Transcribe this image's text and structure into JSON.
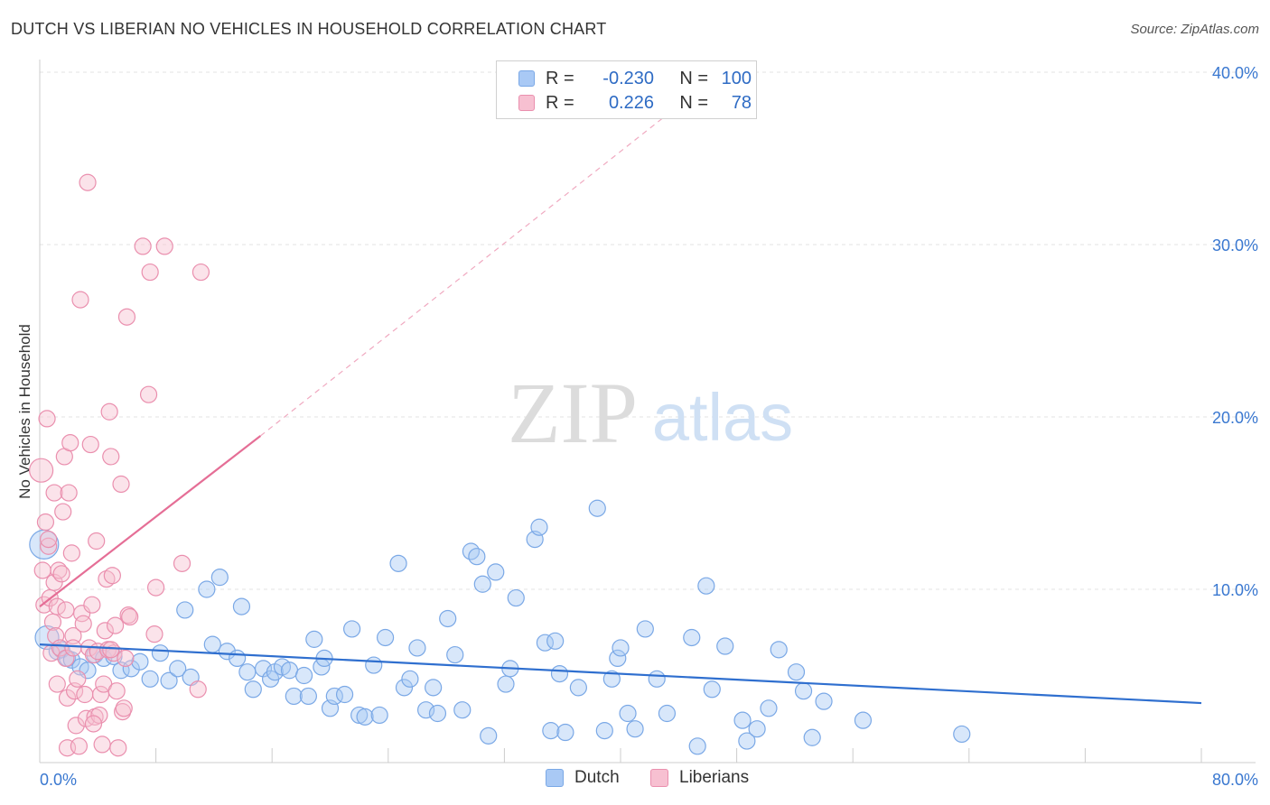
{
  "title": "DUTCH VS LIBERIAN NO VEHICLES IN HOUSEHOLD CORRELATION CHART",
  "source": "Source: ZipAtlas.com",
  "watermark": {
    "zip": "ZIP",
    "atlas": "atlas"
  },
  "legend": {
    "rows": [
      {
        "r_label": "R =",
        "r_value": "-0.230",
        "n_label": "N =",
        "n_value": "100",
        "color": "#a9c9f5",
        "border": "#7aa8e6"
      },
      {
        "r_label": "R =",
        "r_value": "0.226",
        "n_label": "N =",
        "n_value": "78",
        "color": "#f7c0d1",
        "border": "#ea8fae"
      }
    ]
  },
  "bottom_legend": [
    {
      "label": "Dutch",
      "color": "#a9c9f5",
      "border": "#7aa8e6"
    },
    {
      "label": "Liberians",
      "color": "#f7c0d1",
      "border": "#ea8fae"
    }
  ],
  "chart_data": {
    "type": "scatter",
    "title": "DUTCH VS LIBERIAN NO VEHICLES IN HOUSEHOLD CORRELATION CHART",
    "xlabel": "",
    "ylabel": "No Vehicles in Household",
    "xlim": [
      0,
      80
    ],
    "ylim": [
      0,
      42
    ],
    "x_tick_labels": [
      "0.0%",
      "80.0%"
    ],
    "y_tick_labels": [
      "10.0%",
      "20.0%",
      "30.0%",
      "40.0%"
    ],
    "y_ticks": [
      10,
      20,
      30,
      40
    ],
    "grid": true,
    "legend_position": "top-center",
    "series": [
      {
        "name": "Dutch",
        "color": "#7aa8e6",
        "fill": "#a9c9f5",
        "trend": {
          "x": [
            0,
            80
          ],
          "y": [
            6.8,
            3.4
          ],
          "color": "#2f6fcf"
        },
        "points": [
          [
            0.3,
            12.6
          ],
          [
            0.5,
            7.2
          ],
          [
            1.2,
            6.4
          ],
          [
            1.5,
            6.5
          ],
          [
            1.9,
            6.0
          ],
          [
            2.2,
            5.9
          ],
          [
            2.8,
            5.5
          ],
          [
            3.3,
            5.3
          ],
          [
            3.8,
            6.2
          ],
          [
            4.4,
            6.0
          ],
          [
            5.1,
            6.1
          ],
          [
            5.6,
            5.3
          ],
          [
            6.3,
            5.4
          ],
          [
            6.9,
            5.8
          ],
          [
            7.6,
            4.8
          ],
          [
            8.3,
            6.3
          ],
          [
            8.9,
            4.7
          ],
          [
            9.5,
            5.4
          ],
          [
            10.0,
            8.8
          ],
          [
            10.4,
            4.9
          ],
          [
            11.5,
            10.0
          ],
          [
            11.9,
            6.8
          ],
          [
            12.4,
            10.7
          ],
          [
            12.9,
            6.4
          ],
          [
            13.6,
            6.0
          ],
          [
            13.9,
            9.0
          ],
          [
            14.3,
            5.2
          ],
          [
            14.7,
            4.2
          ],
          [
            15.4,
            5.4
          ],
          [
            15.9,
            4.8
          ],
          [
            16.2,
            5.2
          ],
          [
            16.7,
            5.5
          ],
          [
            17.2,
            5.3
          ],
          [
            17.5,
            3.8
          ],
          [
            18.2,
            5.0
          ],
          [
            18.5,
            3.8
          ],
          [
            18.9,
            7.1
          ],
          [
            19.4,
            5.5
          ],
          [
            19.6,
            6.0
          ],
          [
            20.0,
            3.1
          ],
          [
            20.3,
            3.8
          ],
          [
            21.0,
            3.9
          ],
          [
            21.5,
            7.7
          ],
          [
            22.0,
            2.7
          ],
          [
            22.4,
            2.6
          ],
          [
            23.0,
            5.6
          ],
          [
            23.4,
            2.7
          ],
          [
            23.8,
            7.2
          ],
          [
            24.7,
            11.5
          ],
          [
            25.1,
            4.3
          ],
          [
            25.5,
            4.8
          ],
          [
            26.0,
            6.6
          ],
          [
            26.6,
            3.0
          ],
          [
            27.1,
            4.3
          ],
          [
            27.4,
            2.8
          ],
          [
            28.1,
            8.3
          ],
          [
            28.6,
            6.2
          ],
          [
            29.1,
            3.0
          ],
          [
            29.7,
            12.2
          ],
          [
            30.1,
            11.9
          ],
          [
            30.5,
            10.3
          ],
          [
            30.9,
            1.5
          ],
          [
            31.4,
            11.0
          ],
          [
            32.1,
            4.5
          ],
          [
            32.4,
            5.4
          ],
          [
            32.8,
            9.5
          ],
          [
            34.1,
            12.9
          ],
          [
            34.4,
            13.6
          ],
          [
            34.8,
            6.9
          ],
          [
            35.2,
            1.8
          ],
          [
            35.5,
            7.0
          ],
          [
            35.8,
            5.1
          ],
          [
            36.2,
            1.7
          ],
          [
            37.1,
            4.3
          ],
          [
            38.4,
            14.7
          ],
          [
            38.9,
            1.8
          ],
          [
            39.4,
            4.8
          ],
          [
            39.8,
            6.0
          ],
          [
            40.0,
            6.6
          ],
          [
            40.5,
            2.8
          ],
          [
            41.0,
            1.9
          ],
          [
            41.7,
            7.7
          ],
          [
            42.5,
            4.8
          ],
          [
            43.2,
            2.8
          ],
          [
            44.9,
            7.2
          ],
          [
            45.3,
            0.9
          ],
          [
            45.9,
            10.2
          ],
          [
            46.3,
            4.2
          ],
          [
            47.2,
            6.7
          ],
          [
            48.4,
            2.4
          ],
          [
            48.7,
            1.2
          ],
          [
            49.4,
            1.9
          ],
          [
            50.2,
            3.1
          ],
          [
            50.9,
            6.5
          ],
          [
            52.1,
            5.2
          ],
          [
            52.6,
            4.1
          ],
          [
            53.2,
            1.4
          ],
          [
            54.0,
            3.5
          ],
          [
            56.7,
            2.4
          ],
          [
            63.5,
            1.6
          ]
        ]
      },
      {
        "name": "Liberians",
        "color": "#ea8fae",
        "fill": "#f7c0d1",
        "trend": {
          "x": [
            0,
            15.2
          ],
          "y": [
            9.0,
            18.9
          ],
          "color": "#e56e96",
          "dashed_extension_to": [
            43,
            37.4
          ]
        },
        "points": [
          [
            0.1,
            16.9
          ],
          [
            0.2,
            11.1
          ],
          [
            0.3,
            9.1
          ],
          [
            0.4,
            13.9
          ],
          [
            0.5,
            19.9
          ],
          [
            0.6,
            12.5
          ],
          [
            0.7,
            9.5
          ],
          [
            0.8,
            6.3
          ],
          [
            0.9,
            8.1
          ],
          [
            1.0,
            10.4
          ],
          [
            1.0,
            15.6
          ],
          [
            1.1,
            7.3
          ],
          [
            1.2,
            4.5
          ],
          [
            1.3,
            11.1
          ],
          [
            1.4,
            6.6
          ],
          [
            1.5,
            10.9
          ],
          [
            1.6,
            14.5
          ],
          [
            1.7,
            17.7
          ],
          [
            1.8,
            6.0
          ],
          [
            1.9,
            3.7
          ],
          [
            1.9,
            0.8
          ],
          [
            2.0,
            15.6
          ],
          [
            2.1,
            18.5
          ],
          [
            2.2,
            12.1
          ],
          [
            2.3,
            7.3
          ],
          [
            2.4,
            4.1
          ],
          [
            2.5,
            2.1
          ],
          [
            2.6,
            4.8
          ],
          [
            2.7,
            0.9
          ],
          [
            2.8,
            26.8
          ],
          [
            2.9,
            8.6
          ],
          [
            3.0,
            8.0
          ],
          [
            3.1,
            3.9
          ],
          [
            3.2,
            2.5
          ],
          [
            3.3,
            33.6
          ],
          [
            3.4,
            6.6
          ],
          [
            3.5,
            18.4
          ],
          [
            3.6,
            9.1
          ],
          [
            3.7,
            6.2
          ],
          [
            3.8,
            2.6
          ],
          [
            3.9,
            12.8
          ],
          [
            4.0,
            6.4
          ],
          [
            4.1,
            2.7
          ],
          [
            4.2,
            3.9
          ],
          [
            4.3,
            1.0
          ],
          [
            4.4,
            4.5
          ],
          [
            4.5,
            7.6
          ],
          [
            4.6,
            10.6
          ],
          [
            4.7,
            6.5
          ],
          [
            4.8,
            20.3
          ],
          [
            4.9,
            17.7
          ],
          [
            5.0,
            10.8
          ],
          [
            5.1,
            6.3
          ],
          [
            5.2,
            7.9
          ],
          [
            5.3,
            4.1
          ],
          [
            5.4,
            0.8
          ],
          [
            5.6,
            16.1
          ],
          [
            5.7,
            2.9
          ],
          [
            5.9,
            6.0
          ],
          [
            6.0,
            25.8
          ],
          [
            6.1,
            8.5
          ],
          [
            7.1,
            29.9
          ],
          [
            7.5,
            21.3
          ],
          [
            7.6,
            28.4
          ],
          [
            7.9,
            7.4
          ],
          [
            8.0,
            10.1
          ],
          [
            8.6,
            29.9
          ],
          [
            9.8,
            11.5
          ],
          [
            10.9,
            4.2
          ],
          [
            11.1,
            28.4
          ],
          [
            0.6,
            12.9
          ],
          [
            1.2,
            9.0
          ],
          [
            1.8,
            8.8
          ],
          [
            2.3,
            6.6
          ],
          [
            3.7,
            2.2
          ],
          [
            4.9,
            6.5
          ],
          [
            5.8,
            3.1
          ],
          [
            6.2,
            8.4
          ]
        ]
      }
    ]
  }
}
